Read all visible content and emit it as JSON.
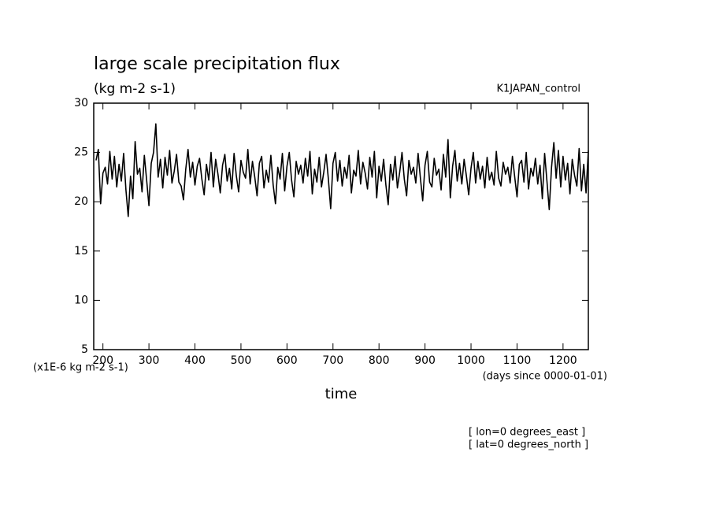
{
  "chart_data": {
    "type": "line",
    "title": "large scale precipitation flux",
    "subtitle": "(kg m-2 s-1)",
    "dataset_label": "K1JAPAN_control",
    "y_unit_label": "(x1E-6 kg m-2 s-1)",
    "x_unit_label": "(days since 0000-01-01)",
    "x_label": "time",
    "annotations": [
      "[ lon=0 degrees_east ]",
      "[ lat=0 degrees_north ]"
    ],
    "xlim": [
      180,
      1255
    ],
    "ylim": [
      5,
      30
    ],
    "xticks": [
      200,
      300,
      400,
      500,
      600,
      700,
      800,
      900,
      1000,
      1100,
      1200
    ],
    "yticks": [
      5,
      10,
      15,
      20,
      25,
      30
    ],
    "x": [
      185,
      190,
      195,
      200,
      205,
      210,
      215,
      220,
      225,
      230,
      235,
      240,
      245,
      250,
      255,
      260,
      265,
      270,
      275,
      280,
      285,
      290,
      295,
      300,
      305,
      310,
      315,
      320,
      325,
      330,
      335,
      340,
      345,
      350,
      355,
      360,
      365,
      370,
      375,
      380,
      385,
      390,
      395,
      400,
      405,
      410,
      415,
      420,
      425,
      430,
      435,
      440,
      445,
      450,
      455,
      460,
      465,
      470,
      475,
      480,
      485,
      490,
      495,
      500,
      505,
      510,
      515,
      520,
      525,
      530,
      535,
      540,
      545,
      550,
      555,
      560,
      565,
      570,
      575,
      580,
      585,
      590,
      595,
      600,
      605,
      610,
      615,
      620,
      625,
      630,
      635,
      640,
      645,
      650,
      655,
      660,
      665,
      670,
      675,
      680,
      685,
      690,
      695,
      700,
      705,
      710,
      715,
      720,
      725,
      730,
      735,
      740,
      745,
      750,
      755,
      760,
      765,
      770,
      775,
      780,
      785,
      790,
      795,
      800,
      805,
      810,
      815,
      820,
      825,
      830,
      835,
      840,
      845,
      850,
      855,
      860,
      865,
      870,
      875,
      880,
      885,
      890,
      895,
      900,
      905,
      910,
      915,
      920,
      925,
      930,
      935,
      940,
      945,
      950,
      955,
      960,
      965,
      970,
      975,
      980,
      985,
      990,
      995,
      1000,
      1005,
      1010,
      1015,
      1020,
      1025,
      1030,
      1035,
      1040,
      1045,
      1050,
      1055,
      1060,
      1065,
      1070,
      1075,
      1080,
      1085,
      1090,
      1095,
      1100,
      1105,
      1110,
      1115,
      1120,
      1125,
      1130,
      1135,
      1140,
      1145,
      1150,
      1155,
      1160,
      1165,
      1170,
      1175,
      1180,
      1185,
      1190,
      1195,
      1200,
      1205,
      1210,
      1215,
      1220,
      1225,
      1230,
      1235,
      1240,
      1245,
      1250,
      1255
    ],
    "series": [
      {
        "color": "#000000",
        "values": [
          24.2,
          25.3,
          19.8,
          22.9,
          23.5,
          21.8,
          25.1,
          22.3,
          24.6,
          21.5,
          23.8,
          22.1,
          24.9,
          21.2,
          18.5,
          22.6,
          20.3,
          26.1,
          22.8,
          23.4,
          21.0,
          24.7,
          22.2,
          19.6,
          23.9,
          25.0,
          27.9,
          22.5,
          24.3,
          21.4,
          24.5,
          22.7,
          25.2,
          21.9,
          23.1,
          24.8,
          22.0,
          21.6,
          20.2,
          23.3,
          25.3,
          22.5,
          24.0,
          21.7,
          23.6,
          24.4,
          22.3,
          20.7,
          23.8,
          22.2,
          25.0,
          21.5,
          24.3,
          22.8,
          20.9,
          23.7,
          24.8,
          22.1,
          23.4,
          21.3,
          24.9,
          22.6,
          21.0,
          24.2,
          23.0,
          22.4,
          25.3,
          21.8,
          24.1,
          22.5,
          20.6,
          23.9,
          24.6,
          21.4,
          23.2,
          22.0,
          24.7,
          21.7,
          19.8,
          23.5,
          22.3,
          24.9,
          21.1,
          23.6,
          25.0,
          22.2,
          20.5,
          24.1,
          22.8,
          23.7,
          21.9,
          24.4,
          22.6,
          25.1,
          20.8,
          23.3,
          22.0,
          24.5,
          21.5,
          23.0,
          24.8,
          22.3,
          19.3,
          23.9,
          25.0,
          22.1,
          24.2,
          21.6,
          23.5,
          22.4,
          24.7,
          20.9,
          23.2,
          22.6,
          25.2,
          21.8,
          24.0,
          22.9,
          21.3,
          24.5,
          22.5,
          25.1,
          20.4,
          23.6,
          22.1,
          24.3,
          21.7,
          19.7,
          23.8,
          22.2,
          24.6,
          21.4,
          23.0,
          25.0,
          22.3,
          20.6,
          24.2,
          22.8,
          23.5,
          21.9,
          24.9,
          22.4,
          20.1,
          23.7,
          25.1,
          22.0,
          21.5,
          24.4,
          22.7,
          23.3,
          21.2,
          24.8,
          22.5,
          26.3,
          20.4,
          23.6,
          25.2,
          22.1,
          23.9,
          21.8,
          24.3,
          22.6,
          20.7,
          23.4,
          25.0,
          21.9,
          24.1,
          22.3,
          23.6,
          21.4,
          24.5,
          22.2,
          23.0,
          21.7,
          25.1,
          22.4,
          21.6,
          24.0,
          22.8,
          23.5,
          21.9,
          24.6,
          22.5,
          20.5,
          23.8,
          24.2,
          22.0,
          25.0,
          21.3,
          23.4,
          22.6,
          24.4,
          21.8,
          23.7,
          20.3,
          24.9,
          22.1,
          19.2,
          23.5,
          26.0,
          22.4,
          25.2,
          21.5,
          24.6,
          22.2,
          23.9,
          20.8,
          24.3,
          22.7,
          21.6,
          25.4,
          21.1,
          23.8,
          20.9,
          25.2
        ]
      }
    ]
  }
}
